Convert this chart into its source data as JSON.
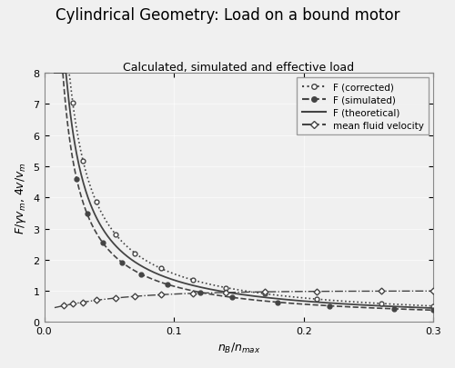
{
  "title": "Cylindrical Geometry: Load on a bound motor",
  "subtitle": "Calculated, simulated and effective load",
  "xlabel": "n_B/n_max",
  "ylabel": "F/γv_m, 4v/v_m",
  "xlim": [
    0,
    0.3
  ],
  "ylim": [
    0,
    8
  ],
  "xticks": [
    0,
    0.1,
    0.2,
    0.3
  ],
  "yticks": [
    0,
    1,
    2,
    3,
    4,
    5,
    6,
    7,
    8
  ],
  "legend_labels": [
    "F (corrected)",
    "F (simulated)",
    "F (theoretical)",
    "mean fluid velocity"
  ],
  "bg_color": "#f0f0f0",
  "plot_bg_color": "#f0f0f0",
  "line_color": "#444444",
  "title_fontsize": 12,
  "subtitle_fontsize": 9,
  "axis_label_fontsize": 9,
  "tick_fontsize": 8,
  "c_corrected": 0.155,
  "c_theoretical": 0.135,
  "c_simulated": 0.115,
  "fluid_asymptote": 1.0,
  "fluid_scale": 0.62,
  "fluid_decay": 0.055,
  "x_corrected_pts": [
    0.022,
    0.03,
    0.04,
    0.055,
    0.07,
    0.09,
    0.115,
    0.14,
    0.17,
    0.21,
    0.26,
    0.3
  ],
  "x_simulated_pts": [
    0.025,
    0.033,
    0.045,
    0.06,
    0.075,
    0.095,
    0.12,
    0.145,
    0.18,
    0.22,
    0.27,
    0.3
  ],
  "x_fluid_pts": [
    0.015,
    0.022,
    0.03,
    0.04,
    0.055,
    0.07,
    0.09,
    0.115,
    0.14,
    0.17,
    0.21,
    0.26,
    0.3
  ]
}
